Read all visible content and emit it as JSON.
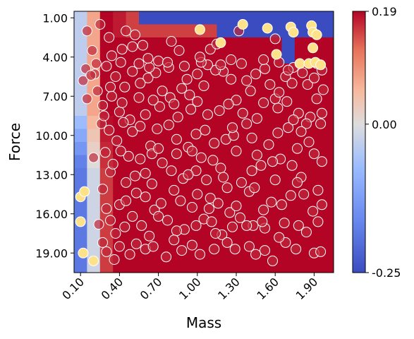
{
  "chart_data": {
    "type": "heatmap",
    "title": "",
    "xlabel": "Mass",
    "ylabel": "Force",
    "xlim": [
      0.05,
      2.05
    ],
    "ylim": [
      20.5,
      0.5
    ],
    "x_ticks": [
      0.1,
      0.4,
      0.7,
      1.0,
      1.3,
      1.6,
      1.9
    ],
    "x_tick_labels": [
      "0.10",
      "0.40",
      "0.70",
      "1.00",
      "1.30",
      "1.60",
      "1.90"
    ],
    "y_ticks": [
      1,
      4,
      7,
      10,
      13,
      16,
      19
    ],
    "y_tick_labels": [
      "1.00",
      "4.00",
      "7.00",
      "10.00",
      "13.00",
      "16.00",
      "19.00"
    ],
    "colormap": "coolwarm",
    "color_range": [
      -0.25,
      0.19
    ],
    "colorbar": {
      "ticks": [
        0.19,
        0.0,
        -0.25
      ],
      "tick_labels": [
        "0.19",
        "0.00",
        "-0.25"
      ]
    },
    "grid": false,
    "scatter": {
      "edge_color": "#ffffff",
      "low_value_color": "#fde28a",
      "high_value_color": "#c0283a",
      "points": [
        [
          0.15,
          2.0
        ],
        [
          0.25,
          1.5
        ],
        [
          0.19,
          3.5
        ],
        [
          0.32,
          2.5
        ],
        [
          0.45,
          2.0
        ],
        [
          0.52,
          2.3
        ],
        [
          0.42,
          3.4
        ],
        [
          0.58,
          3.1
        ],
        [
          0.8,
          2.8
        ],
        [
          0.86,
          3.5
        ],
        [
          1.1,
          3.4
        ],
        [
          1.32,
          2.0
        ],
        [
          1.6,
          2.6
        ],
        [
          0.12,
          5.8
        ],
        [
          0.21,
          5.3
        ],
        [
          0.33,
          6.3
        ],
        [
          0.5,
          5.1
        ],
        [
          0.62,
          5.6
        ],
        [
          0.78,
          4.8
        ],
        [
          0.92,
          5.7
        ],
        [
          1.05,
          6.2
        ],
        [
          1.2,
          5.1
        ],
        [
          1.38,
          5.8
        ],
        [
          1.52,
          4.9
        ],
        [
          1.68,
          5.5
        ],
        [
          1.85,
          6.1
        ],
        [
          1.97,
          6.5
        ],
        [
          0.15,
          7.2
        ],
        [
          0.27,
          7.7
        ],
        [
          0.4,
          8.2
        ],
        [
          0.55,
          7.1
        ],
        [
          0.71,
          7.8
        ],
        [
          0.85,
          8.6
        ],
        [
          1.0,
          7.4
        ],
        [
          1.17,
          8.1
        ],
        [
          1.3,
          7.3
        ],
        [
          1.46,
          8.7
        ],
        [
          1.62,
          7.9
        ],
        [
          1.78,
          8.3
        ],
        [
          1.92,
          7.2
        ],
        [
          0.26,
          9.1
        ],
        [
          0.38,
          10.4
        ],
        [
          0.5,
          9.7
        ],
        [
          0.64,
          10.8
        ],
        [
          0.78,
          9.2
        ],
        [
          0.93,
          10.9
        ],
        [
          1.06,
          9.6
        ],
        [
          1.22,
          10.3
        ],
        [
          1.38,
          9.1
        ],
        [
          1.55,
          10.7
        ],
        [
          1.7,
          9.4
        ],
        [
          1.86,
          10.5
        ],
        [
          0.2,
          11.7
        ],
        [
          0.33,
          12.8
        ],
        [
          0.47,
          11.6
        ],
        [
          0.6,
          12.9
        ],
        [
          0.73,
          12.1
        ],
        [
          0.89,
          13.3
        ],
        [
          1.03,
          11.7
        ],
        [
          1.18,
          12.5
        ],
        [
          1.34,
          13.6
        ],
        [
          1.49,
          12.3
        ],
        [
          1.64,
          11.8
        ],
        [
          1.8,
          13.2
        ],
        [
          1.96,
          12.0
        ],
        [
          0.27,
          14.1
        ],
        [
          0.4,
          15.3
        ],
        [
          0.53,
          14.4
        ],
        [
          0.67,
          15.7
        ],
        [
          0.82,
          14.2
        ],
        [
          0.96,
          15.5
        ],
        [
          1.1,
          14.8
        ],
        [
          1.25,
          15.9
        ],
        [
          1.4,
          14.3
        ],
        [
          1.57,
          15.1
        ],
        [
          1.72,
          14.6
        ],
        [
          1.89,
          15.8
        ],
        [
          0.24,
          16.8
        ],
        [
          0.37,
          17.5
        ],
        [
          0.5,
          16.2
        ],
        [
          0.63,
          17.7
        ],
        [
          0.77,
          16.5
        ],
        [
          0.9,
          17.2
        ],
        [
          1.05,
          16.4
        ],
        [
          1.19,
          17.6
        ],
        [
          1.33,
          16.3
        ],
        [
          1.52,
          17.1
        ],
        [
          1.67,
          16.7
        ],
        [
          1.84,
          17.4
        ],
        [
          0.3,
          18.9
        ],
        [
          0.48,
          19.1
        ],
        [
          0.6,
          18.7
        ],
        [
          0.76,
          19.3
        ],
        [
          0.88,
          18.8
        ],
        [
          1.02,
          19.1
        ],
        [
          1.29,
          18.7
        ],
        [
          1.45,
          19.1
        ],
        [
          1.58,
          19.6
        ],
        [
          1.9,
          19.0
        ],
        [
          1.68,
          18.2
        ],
        [
          0.36,
          19.5
        ],
        [
          1.14,
          5.0
        ],
        [
          1.41,
          6.6
        ],
        [
          0.94,
          6.9
        ],
        [
          1.74,
          4.8
        ],
        [
          1.6,
          7.2
        ],
        [
          1.28,
          10.0
        ],
        [
          1.46,
          11.5
        ],
        [
          0.99,
          12.7
        ],
        [
          1.77,
          11.0
        ],
        [
          0.65,
          11.4
        ],
        [
          1.23,
          14.0
        ],
        [
          1.43,
          16.9
        ],
        [
          1.14,
          17.5
        ],
        [
          0.45,
          13.6
        ],
        [
          1.09,
          15.6
        ],
        [
          1.34,
          4.5
        ],
        [
          0.7,
          4.3
        ],
        [
          1.87,
          8.6
        ],
        [
          0.3,
          4.7
        ],
        [
          0.14,
          4.9
        ],
        [
          0.18,
          5.4
        ],
        [
          0.22,
          4.5
        ],
        [
          0.34,
          3.9
        ],
        [
          0.37,
          5.5
        ],
        [
          0.44,
          6.3
        ],
        [
          0.56,
          6.0
        ],
        [
          0.68,
          5.2
        ],
        [
          0.73,
          6.6
        ],
        [
          0.88,
          6.4
        ],
        [
          1.0,
          5.3
        ],
        [
          1.08,
          4.6
        ],
        [
          1.26,
          5.7
        ],
        [
          1.45,
          5.3
        ],
        [
          1.56,
          6.1
        ],
        [
          1.63,
          6.7
        ],
        [
          1.73,
          6.0
        ],
        [
          1.81,
          5.2
        ],
        [
          1.9,
          5.6
        ],
        [
          0.23,
          6.6
        ],
        [
          0.28,
          8.5
        ],
        [
          0.34,
          7.0
        ],
        [
          0.42,
          7.5
        ],
        [
          0.48,
          8.8
        ],
        [
          0.6,
          8.4
        ],
        [
          0.66,
          7.3
        ],
        [
          0.79,
          7.1
        ],
        [
          0.82,
          7.6
        ],
        [
          0.95,
          8.0
        ],
        [
          1.08,
          8.4
        ],
        [
          1.24,
          7.6
        ],
        [
          1.35,
          8.3
        ],
        [
          1.51,
          7.5
        ],
        [
          1.69,
          7.4
        ],
        [
          1.74,
          8.8
        ],
        [
          1.84,
          9.1
        ],
        [
          1.96,
          8.3
        ],
        [
          0.32,
          9.6
        ],
        [
          0.43,
          9.0
        ],
        [
          0.56,
          9.3
        ],
        [
          0.69,
          9.5
        ],
        [
          0.84,
          10.3
        ],
        [
          0.99,
          9.9
        ],
        [
          1.13,
          10.6
        ],
        [
          1.27,
          9.4
        ],
        [
          1.42,
          10.2
        ],
        [
          1.62,
          9.8
        ],
        [
          1.8,
          9.7
        ],
        [
          1.95,
          9.1
        ],
        [
          0.29,
          11.3
        ],
        [
          0.41,
          11.2
        ],
        [
          0.56,
          11.8
        ],
        [
          0.7,
          11.0
        ],
        [
          0.84,
          11.4
        ],
        [
          0.96,
          11.2
        ],
        [
          1.12,
          11.9
        ],
        [
          1.3,
          11.2
        ],
        [
          1.42,
          12.7
        ],
        [
          1.58,
          12.0
        ],
        [
          1.73,
          12.3
        ],
        [
          1.9,
          11.4
        ],
        [
          0.35,
          12.2
        ],
        [
          0.52,
          13.1
        ],
        [
          0.65,
          13.7
        ],
        [
          0.8,
          12.7
        ],
        [
          0.93,
          13.0
        ],
        [
          1.07,
          13.4
        ],
        [
          1.2,
          13.2
        ],
        [
          1.44,
          14.0
        ],
        [
          1.6,
          13.4
        ],
        [
          1.77,
          13.6
        ],
        [
          1.93,
          14.2
        ],
        [
          0.3,
          15.6
        ],
        [
          0.45,
          15.0
        ],
        [
          0.6,
          14.7
        ],
        [
          0.72,
          15.2
        ],
        [
          0.87,
          15.0
        ],
        [
          1.0,
          14.5
        ],
        [
          1.16,
          15.2
        ],
        [
          1.3,
          15.4
        ],
        [
          1.51,
          15.7
        ],
        [
          1.65,
          15.3
        ],
        [
          1.82,
          14.5
        ],
        [
          1.96,
          15.3
        ],
        [
          0.33,
          16.5
        ],
        [
          0.44,
          17.0
        ],
        [
          0.57,
          16.9
        ],
        [
          0.7,
          16.2
        ],
        [
          0.84,
          17.3
        ],
        [
          0.99,
          16.9
        ],
        [
          1.11,
          16.6
        ],
        [
          1.27,
          17.0
        ],
        [
          1.38,
          16.9
        ],
        [
          1.5,
          16.6
        ],
        [
          1.63,
          17.8
        ],
        [
          1.78,
          16.9
        ],
        [
          1.93,
          16.6
        ],
        [
          0.27,
          18.2
        ],
        [
          0.4,
          18.5
        ],
        [
          0.53,
          18.3
        ],
        [
          0.66,
          18.5
        ],
        [
          0.82,
          18.0
        ],
        [
          0.96,
          18.4
        ],
        [
          1.13,
          18.7
        ],
        [
          1.23,
          18.2
        ],
        [
          1.4,
          18.5
        ],
        [
          1.52,
          18.8
        ],
        [
          1.76,
          18.7
        ],
        [
          1.95,
          18.9
        ],
        [
          0.41,
          4.4
        ],
        [
          0.55,
          4.5
        ],
        [
          0.63,
          4.8
        ],
        [
          0.77,
          4.4
        ],
        [
          0.9,
          4.7
        ],
        [
          1.03,
          4.4
        ],
        [
          1.18,
          4.6
        ],
        [
          1.26,
          4.2
        ],
        [
          1.51,
          4.2
        ],
        [
          1.63,
          4.4
        ],
        [
          1.7,
          5.0
        ],
        [
          1.96,
          5.0
        ],
        [
          0.5,
          3.2
        ],
        [
          0.62,
          4.1
        ],
        [
          1.02,
          4.0
        ],
        [
          1.15,
          3.0
        ],
        [
          1.92,
          4.5
        ]
      ],
      "highlight_points": [
        [
          1.02,
          1.9
        ],
        [
          1.18,
          2.9
        ],
        [
          1.35,
          1.5
        ],
        [
          1.54,
          1.8
        ],
        [
          1.72,
          1.7
        ],
        [
          1.74,
          2.1
        ],
        [
          1.88,
          1.6
        ],
        [
          1.89,
          2.1
        ],
        [
          1.92,
          2.3
        ],
        [
          1.89,
          3.3
        ],
        [
          1.61,
          3.8
        ],
        [
          1.79,
          4.5
        ],
        [
          1.86,
          4.5
        ],
        [
          1.91,
          4.4
        ],
        [
          1.95,
          4.6
        ],
        [
          0.1,
          14.7
        ],
        [
          0.13,
          14.3
        ],
        [
          0.1,
          16.6
        ],
        [
          0.12,
          19.0
        ],
        [
          0.2,
          19.6
        ]
      ]
    }
  }
}
